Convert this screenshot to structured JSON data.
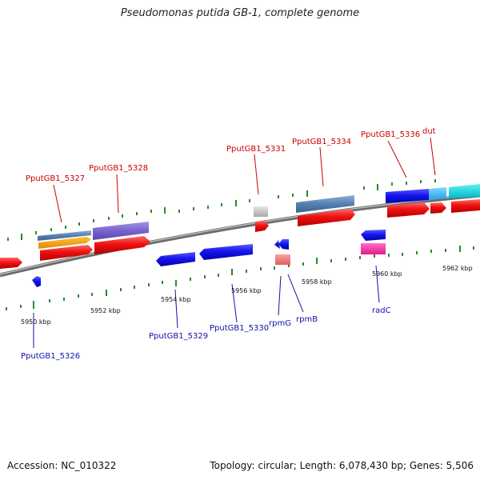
{
  "title": "Pseudomonas putida GB-1, complete genome",
  "footer": {
    "accession": "Accession: NC_010322",
    "summary": "Topology: circular; Length: 6,078,430 bp; Genes: 5,506"
  },
  "kbp_labels": [
    "5950 kbp",
    "5952 kbp",
    "5954 kbp",
    "5956 kbp",
    "5958 kbp",
    "5960 kbp",
    "5962 kbp"
  ],
  "gene_labels_forward": [
    "PputGB1_5327",
    "PputGB1_5328",
    "PputGB1_5331",
    "PputGB1_5334",
    "PputGB1_5336",
    "dut"
  ],
  "gene_labels_reverse": [
    "PputGB1_5326",
    "PputGB1_5329",
    "PputGB1_5330",
    "rpmG",
    "rpmB",
    "radC"
  ],
  "colors": {
    "forward_label": "#cc0000",
    "reverse_label": "#1111aa",
    "backbone": "#8a8a8a",
    "tick": "#2a8a2a"
  }
}
